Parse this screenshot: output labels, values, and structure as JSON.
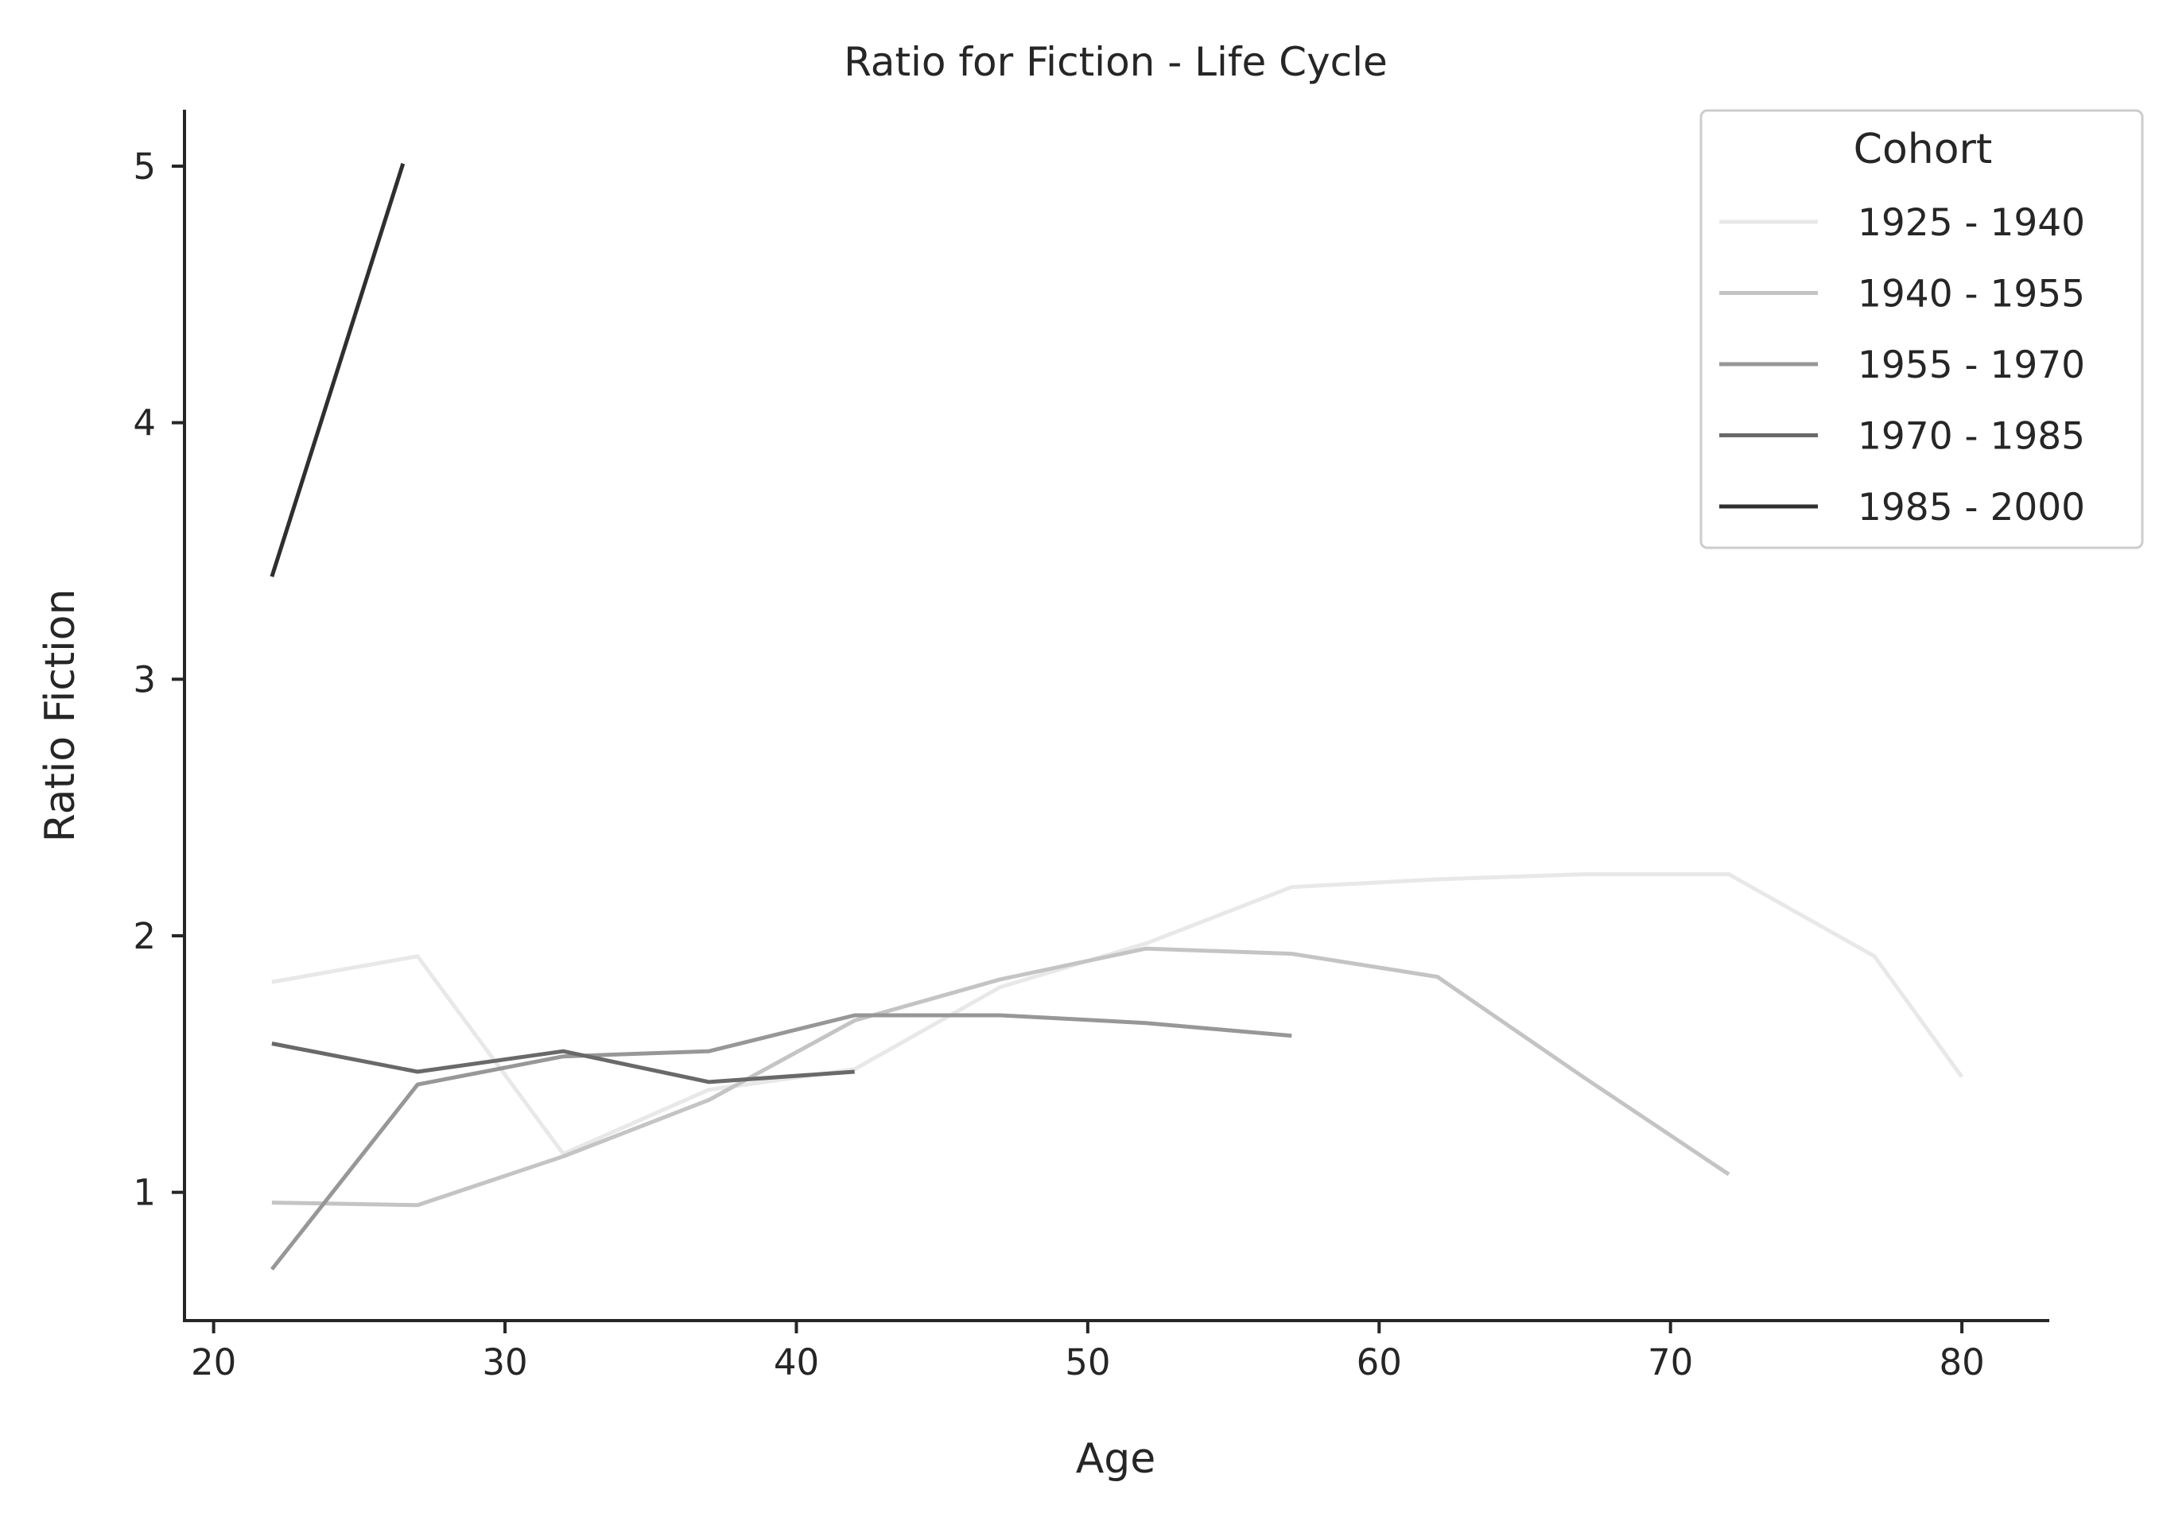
{
  "chart_data": {
    "type": "line",
    "title": "Ratio for Fiction - Life Cycle",
    "xlabel": "Age",
    "ylabel": "Ratio Fiction",
    "xlim": [
      19,
      83
    ],
    "ylim": [
      0.5,
      5.22
    ],
    "xticks": [
      20,
      30,
      40,
      50,
      60,
      70,
      80
    ],
    "yticks": [
      1,
      2,
      3,
      4,
      5
    ],
    "grid": false,
    "legend": {
      "title": "Cohort",
      "placement": "top-right"
    },
    "series": [
      {
        "name": "1925 - 1940",
        "color": "#e8e8e8",
        "x": [
          22,
          27,
          32,
          37,
          42,
          47,
          52,
          57,
          62,
          67,
          72,
          77,
          80
        ],
        "y": [
          1.82,
          1.92,
          1.15,
          1.4,
          1.48,
          1.8,
          1.97,
          2.19,
          2.22,
          2.24,
          2.24,
          1.92,
          1.45
        ]
      },
      {
        "name": "1940 - 1955",
        "color": "#c4c4c4",
        "x": [
          22,
          27,
          32,
          37,
          42,
          47,
          52,
          57,
          62,
          67,
          72
        ],
        "y": [
          0.96,
          0.95,
          1.14,
          1.36,
          1.67,
          1.83,
          1.95,
          1.93,
          1.84,
          1.45,
          1.07
        ]
      },
      {
        "name": "1955 - 1970",
        "color": "#979797",
        "x": [
          22,
          27,
          32,
          37,
          42,
          47,
          52,
          57
        ],
        "y": [
          0.7,
          1.42,
          1.53,
          1.55,
          1.69,
          1.69,
          1.66,
          1.61
        ]
      },
      {
        "name": "1970 - 1985",
        "color": "#696969",
        "x": [
          22,
          27,
          32,
          37,
          42
        ],
        "y": [
          1.58,
          1.47,
          1.55,
          1.43,
          1.47
        ]
      },
      {
        "name": "1985 - 2000",
        "color": "#2f2f2f",
        "x": [
          22,
          26.5
        ],
        "y": [
          3.4,
          5.01
        ]
      }
    ]
  }
}
